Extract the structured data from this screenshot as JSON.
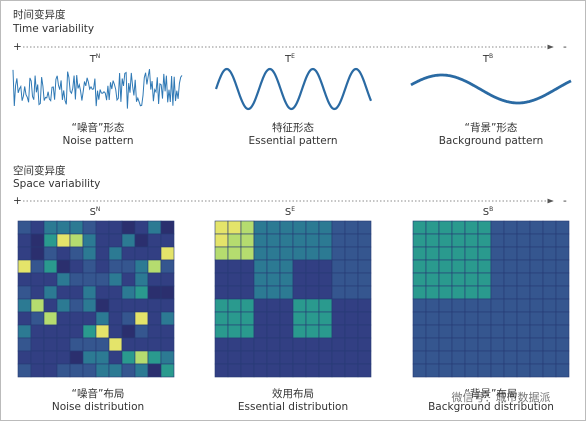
{
  "time": {
    "title_zh": "时间变异度",
    "title_en": "Time variability",
    "plus": "+",
    "minus": "-",
    "panels": [
      {
        "symbol": "T",
        "sup": "N",
        "label_zh": "“噪音”形态",
        "label_en": "Noise pattern"
      },
      {
        "symbol": "T",
        "sup": "E",
        "label_zh": "特征形态",
        "label_en": "Essential pattern"
      },
      {
        "symbol": "T",
        "sup": "B",
        "label_zh": "“背景”形态",
        "label_en": "Background pattern"
      }
    ]
  },
  "space": {
    "title_zh": "空间变异度",
    "title_en": "Space variability",
    "plus": "+",
    "minus": "-",
    "panels": [
      {
        "symbol": "S",
        "sup": "N",
        "label_zh": "“噪音”布局",
        "label_en": "Noise distribution"
      },
      {
        "symbol": "S",
        "sup": "E",
        "label_zh": "效用布局",
        "label_en": "Essential distribution"
      },
      {
        "symbol": "S",
        "sup": "B",
        "label_zh": "“背景”布局",
        "label_en": "Background distribution"
      }
    ]
  },
  "watermark": "微信号：城市数据派"
}
